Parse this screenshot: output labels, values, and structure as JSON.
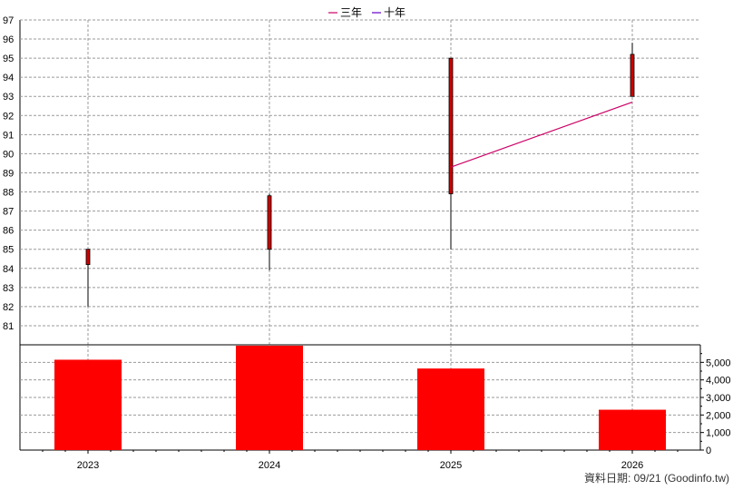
{
  "chart_data": {
    "type": "candlestick-with-volume-bars",
    "legend": [
      {
        "name": "三年",
        "color": "#cc0066"
      },
      {
        "name": "十年",
        "color": "#6600cc"
      }
    ],
    "categories": [
      "2023",
      "2024",
      "2025",
      "2026"
    ],
    "price_axis": {
      "min": 80,
      "max": 97,
      "ticks": [
        81,
        82,
        83,
        84,
        85,
        86,
        87,
        88,
        89,
        90,
        91,
        92,
        93,
        94,
        95,
        96,
        97
      ]
    },
    "candles": [
      {
        "x": "2023",
        "open": 84.2,
        "close": 85.0,
        "high": 85.0,
        "low": 82.0
      },
      {
        "x": "2024",
        "open": 85.0,
        "close": 87.8,
        "high": 87.9,
        "low": 83.9
      },
      {
        "x": "2025",
        "open": 87.9,
        "close": 95.0,
        "high": 95.0,
        "low": 85.0
      },
      {
        "x": "2026",
        "open": 93.0,
        "close": 95.2,
        "high": 95.8,
        "low": 93.0
      }
    ],
    "three_year_line": [
      {
        "x": "2025",
        "y": 89.3
      },
      {
        "x": "2026",
        "y": 92.7
      }
    ],
    "volume_axis": {
      "min": 0,
      "max": 6000,
      "ticks": [
        0,
        1000,
        2000,
        3000,
        4000,
        5000
      ],
      "tick_labels": [
        "0",
        "1,000",
        "2,000",
        "3,000",
        "4,000",
        "5,000"
      ]
    },
    "volume": [
      {
        "x": "2023",
        "value": 5150
      },
      {
        "x": "2024",
        "value": 5950
      },
      {
        "x": "2025",
        "value": 4650
      },
      {
        "x": "2026",
        "value": 2300
      }
    ],
    "colors": {
      "candle": "#cc0000",
      "volume": "#ff0000",
      "grid": "#999999",
      "wick": "#000000"
    }
  },
  "footer": "資料日期: 09/21  (Goodinfo.tw)"
}
